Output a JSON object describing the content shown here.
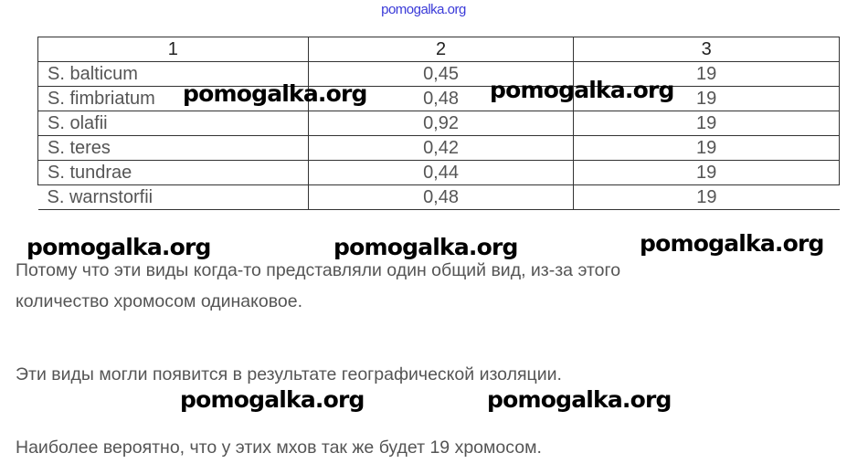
{
  "watermark_top": "pomogalka.org",
  "watermark": "pomogalka.org",
  "table": {
    "headers": [
      "1",
      "2",
      "3"
    ],
    "rows": [
      [
        "S. balticum",
        "0,45",
        "19"
      ],
      [
        "S. fimbriatum",
        "0,48",
        "19"
      ],
      [
        "S. olafii",
        "0,92",
        "19"
      ],
      [
        "S. teres",
        "0,42",
        "19"
      ],
      [
        "S. tundrae",
        "0,44",
        "19"
      ],
      [
        "S. warnstorfii",
        "0,48",
        "19"
      ]
    ]
  },
  "paragraphs": [
    "Потому что эти виды когда-то представляли один общий вид, из-за этого",
    "количество хромосом одинаковое.",
    "Эти виды могли появится в результате географической изоляции.",
    "Наиболее вероятно, что у этих мхов так же будет 19 хромосом."
  ]
}
